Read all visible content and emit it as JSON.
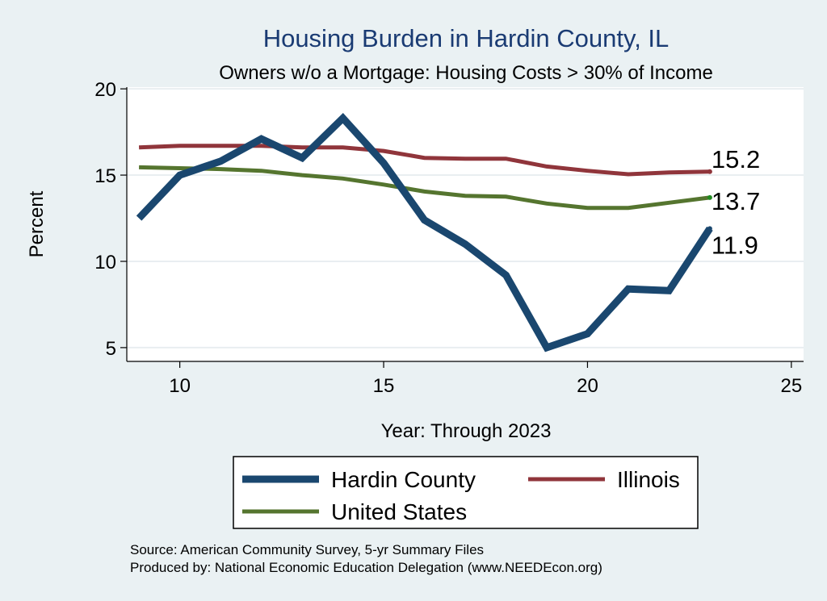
{
  "chart_data": {
    "type": "line",
    "title": "Housing Burden in Hardin County, IL",
    "subtitle": "Owners w/o a Mortgage: Housing Costs > 30% of Income",
    "xlabel": "Year: Through 2023",
    "ylabel": "Percent",
    "xlim": [
      8.7,
      25.3
    ],
    "ylim": [
      4.2,
      20.1
    ],
    "x_ticks": [
      10,
      15,
      20,
      25
    ],
    "y_ticks": [
      5,
      10,
      15,
      20
    ],
    "grid": true,
    "legend_position": "bottom",
    "x": [
      9,
      10,
      11,
      12,
      13,
      14,
      15,
      16,
      17,
      18,
      19,
      20,
      21,
      22,
      23
    ],
    "series": [
      {
        "name": "Hardin County",
        "color": "#1a476f",
        "values": [
          12.5,
          15.0,
          15.8,
          17.1,
          16.0,
          18.3,
          15.7,
          12.4,
          11.0,
          9.2,
          5.0,
          5.8,
          8.4,
          8.3,
          11.9
        ],
        "end_label": "11.9"
      },
      {
        "name": "Illinois",
        "color": "#90353b",
        "values": [
          16.6,
          16.7,
          16.7,
          16.7,
          16.6,
          16.6,
          16.4,
          16.0,
          15.95,
          15.95,
          15.5,
          15.25,
          15.05,
          15.15,
          15.2
        ],
        "end_label": "15.2"
      },
      {
        "name": "United States",
        "color": "#55752f",
        "values": [
          15.45,
          15.4,
          15.35,
          15.25,
          15.0,
          14.8,
          14.45,
          14.05,
          13.8,
          13.75,
          13.35,
          13.1,
          13.1,
          13.4,
          13.7
        ],
        "end_label": "13.7"
      }
    ]
  },
  "notes": {
    "source": "Source: American Community Survey, 5-yr Summary Files",
    "produced": "Produced by: National Economic Education Delegation (www.NEEDEcon.org)"
  }
}
